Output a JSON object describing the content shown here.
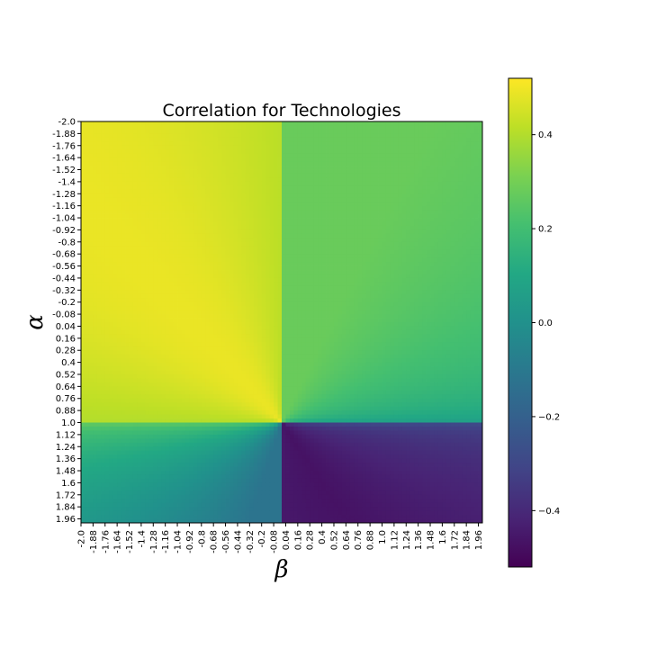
{
  "chart_data": {
    "type": "heatmap",
    "title": "Correlation for Technologies",
    "xlabel": "β",
    "ylabel": "α",
    "x_range": [
      -2.0,
      2.0
    ],
    "y_range": [
      -2.0,
      2.0
    ],
    "x_tick_labels": [
      "-2.0",
      "-1.88",
      "-1.76",
      "-1.64",
      "-1.52",
      "-1.4",
      "-1.28",
      "-1.16",
      "-1.04",
      "-0.92",
      "-0.8",
      "-0.68",
      "-0.56",
      "-0.44",
      "-0.32",
      "-0.2",
      "-0.08",
      "0.04",
      "0.16",
      "0.28",
      "0.4",
      "0.52",
      "0.64",
      "0.76",
      "0.88",
      "1.0",
      "1.12",
      "1.24",
      "1.36",
      "1.48",
      "1.6",
      "1.72",
      "1.84",
      "1.96"
    ],
    "y_tick_labels": [
      "-2.0",
      "-1.88",
      "-1.76",
      "-1.64",
      "-1.52",
      "-1.4",
      "-1.28",
      "-1.16",
      "-1.04",
      "-0.92",
      "-0.8",
      "-0.68",
      "-0.56",
      "-0.44",
      "-0.32",
      "-0.2",
      "-0.08",
      "0.04",
      "0.16",
      "0.28",
      "0.4",
      "0.52",
      "0.64",
      "0.76",
      "0.88",
      "1.0",
      "1.12",
      "1.24",
      "1.36",
      "1.48",
      "1.6",
      "1.72",
      "1.84",
      "1.96"
    ],
    "colormap": "viridis",
    "colorbar": {
      "range": [
        -0.52,
        0.52
      ],
      "ticks": [
        -0.4,
        -0.2,
        0.0,
        0.2,
        0.4
      ],
      "tick_labels": [
        "−0.4",
        "−0.2",
        "0.0",
        "0.2",
        "0.4"
      ]
    },
    "regions": [
      {
        "quadrant": "beta<0, alpha<1",
        "typical_value": 0.44,
        "max_value": 0.5
      },
      {
        "quadrant": "beta>0, alpha<1",
        "typical_value": 0.27,
        "min_value": 0.05
      },
      {
        "quadrant": "beta<0, alpha>1",
        "typical_value": -0.1,
        "max_value": 0.3
      },
      {
        "quadrant": "beta>0, alpha>1",
        "typical_value": -0.48,
        "max_value": -0.2
      }
    ],
    "grid": false
  }
}
